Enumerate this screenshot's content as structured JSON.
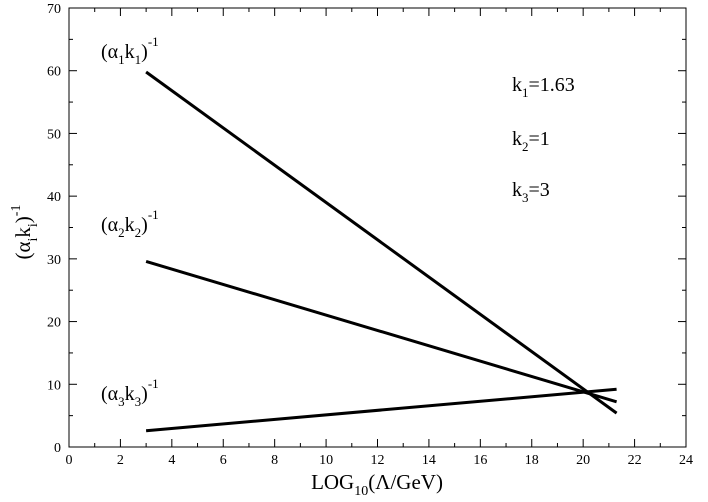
{
  "chart_data": {
    "type": "line",
    "xlabel": {
      "base": "LOG",
      "sub": "10",
      "rest": "(Λ/GeV)"
    },
    "ylabel": {
      "open": "(α",
      "sub1": "i",
      "mid": "k",
      "sub2": "i",
      "close": ")",
      "sup": "-1"
    },
    "xlim": [
      0,
      24
    ],
    "ylim": [
      0,
      70
    ],
    "xticks": [
      0,
      2,
      4,
      6,
      8,
      10,
      12,
      14,
      16,
      18,
      20,
      22,
      24
    ],
    "yticks": [
      0,
      10,
      20,
      30,
      40,
      50,
      60,
      70
    ],
    "grid": false,
    "series": [
      {
        "x": [
          3,
          21.3
        ],
        "y": [
          59.8,
          5.4
        ],
        "label": {
          "open": "(α",
          "sub1": "1",
          "mid": "k",
          "sub2": "1",
          "close": ")",
          "sup": "-1"
        }
      },
      {
        "x": [
          3,
          21.3
        ],
        "y": [
          29.6,
          7.2
        ],
        "label": {
          "open": "(α",
          "sub1": "2",
          "mid": "k",
          "sub2": "2",
          "close": ")",
          "sup": "-1"
        }
      },
      {
        "x": [
          3,
          21.3
        ],
        "y": [
          2.6,
          9.2
        ],
        "label": {
          "open": "(α",
          "sub1": "3",
          "mid": "k",
          "sub2": "3",
          "close": ")",
          "sup": "-1"
        }
      }
    ],
    "annotations": [
      {
        "k": "k",
        "sub": "1",
        "value": "=1.63"
      },
      {
        "k": "k",
        "sub": "2",
        "value": "=1"
      },
      {
        "k": "k",
        "sub": "3",
        "value": "=3"
      }
    ]
  }
}
